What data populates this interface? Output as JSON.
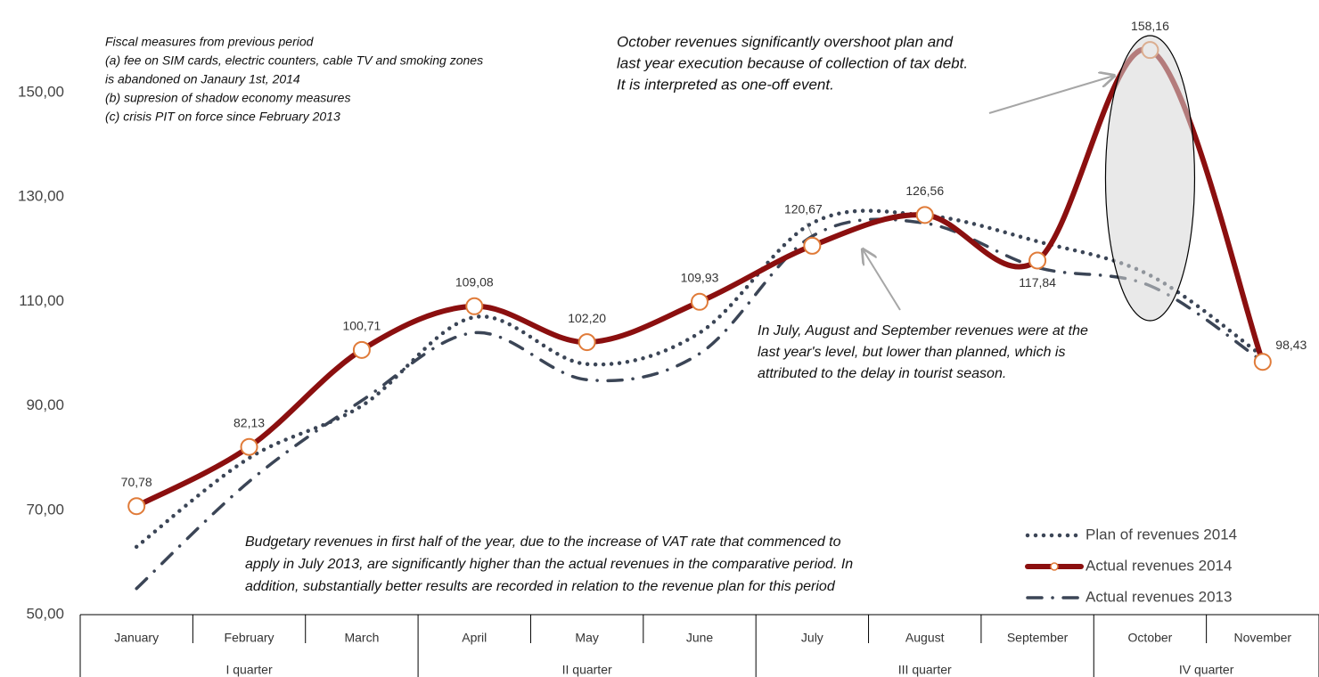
{
  "chart_data": {
    "type": "line",
    "categories": [
      "January",
      "February",
      "March",
      "April",
      "May",
      "June",
      "July",
      "August",
      "September",
      "October",
      "November"
    ],
    "groups": [
      {
        "label": "I quarter",
        "months": 3
      },
      {
        "label": "II quarter",
        "months": 3
      },
      {
        "label": "III quarter",
        "months": 3
      },
      {
        "label": "IV quarter",
        "months": 2
      }
    ],
    "series": [
      {
        "name": "Plan of revenues 2014",
        "color": "#3b4556",
        "style": "dotted",
        "values": [
          63,
          80,
          90,
          107,
          98,
          104,
          125,
          126.5,
          121.5,
          115,
          99.5
        ]
      },
      {
        "name": "Actual revenues 2014",
        "color": "#8b0f0f",
        "style": "solid",
        "marker_color": "#e07b39",
        "values": [
          70.78,
          82.13,
          100.71,
          109.08,
          102.2,
          109.93,
          120.67,
          126.56,
          117.84,
          158.16,
          98.43
        ],
        "value_labels": [
          "70,78",
          "82,13",
          "100,71",
          "109,08",
          "102,20",
          "109,93",
          "120,67",
          "126,56",
          "117,84",
          "158,16",
          "98,43"
        ]
      },
      {
        "name": "Actual revenues 2013",
        "color": "#3b4556",
        "style": "dashdot",
        "values": [
          55,
          75.5,
          91,
          104,
          95,
          100,
          122.5,
          125,
          116.5,
          113,
          98.5
        ]
      }
    ],
    "ylim": [
      50,
      160
    ],
    "yticks": [
      {
        "value": 50,
        "label": "50,00"
      },
      {
        "value": 70,
        "label": "70,00"
      },
      {
        "value": 90,
        "label": "90,00"
      },
      {
        "value": 110,
        "label": "110,00"
      },
      {
        "value": 130,
        "label": "130,00"
      },
      {
        "value": 150,
        "label": "150,00"
      }
    ],
    "legend": "bottom-right",
    "annotations": [
      {
        "lines": [
          "Fiscal measures from previous period",
          "(a) fee on SIM cards, electric counters, cable TV and smoking zones",
          "is abandoned on Janaury 1st, 2014",
          "(b) supresion of shadow economy measures",
          "(c) crisis PIT on force since February 2013"
        ]
      },
      {
        "lines": [
          "October revenues significantly overshoot plan and",
          "last year execution because of collection of tax debt.",
          "It is interpreted as one-off event."
        ]
      },
      {
        "lines": [
          "In July, August and September revenues were at the",
          "last year's level, but lower than planned, which is",
          "attributed to the delay in tourist season."
        ]
      },
      {
        "lines": [
          "Budgetary revenues in first half of the year, due to the increase of VAT rate that commenced to",
          "apply in July 2013, are significantly higher than the actual revenues in the comparative period. In",
          "addition, substantially better results are recorded in relation to the revenue plan for this period"
        ]
      }
    ]
  }
}
